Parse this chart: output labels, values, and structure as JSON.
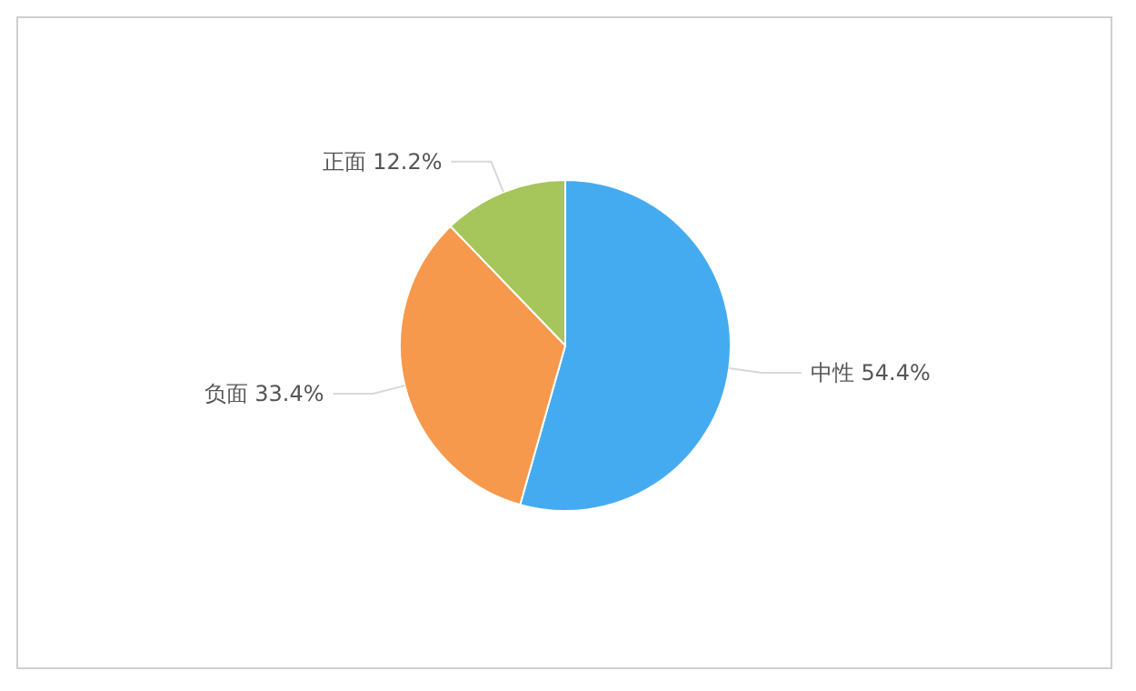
{
  "chart_data": {
    "type": "pie",
    "categories": [
      "中性",
      "负面",
      "正面"
    ],
    "values": [
      54.4,
      33.4,
      12.2
    ],
    "value_labels": [
      "54.4%",
      "33.4%",
      "12.2%"
    ],
    "colors": [
      "#45abf0",
      "#f7994c",
      "#a6c55b"
    ]
  }
}
